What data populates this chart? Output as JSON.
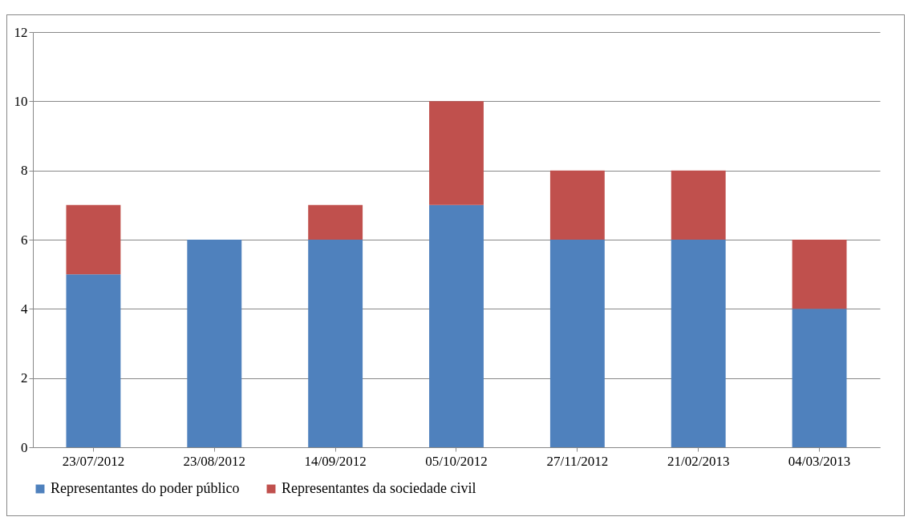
{
  "chart_data": {
    "type": "bar",
    "stacked": true,
    "categories": [
      "23/07/2012",
      "23/08/2012",
      "14/09/2012",
      "05/10/2012",
      "27/11/2012",
      "21/02/2013",
      "04/03/2013"
    ],
    "series": [
      {
        "name": "Representantes do poder público",
        "color": "#4f81bd",
        "values": [
          5,
          6,
          6,
          7,
          6,
          6,
          4
        ]
      },
      {
        "name": "Representantes da sociedade civil",
        "color": "#c0504d",
        "values": [
          2,
          0,
          1,
          3,
          2,
          2,
          2
        ]
      }
    ],
    "ylim": [
      0,
      12
    ],
    "yticks": [
      0,
      2,
      4,
      6,
      8,
      10,
      12
    ],
    "grid": "y",
    "legend": "bottom"
  }
}
